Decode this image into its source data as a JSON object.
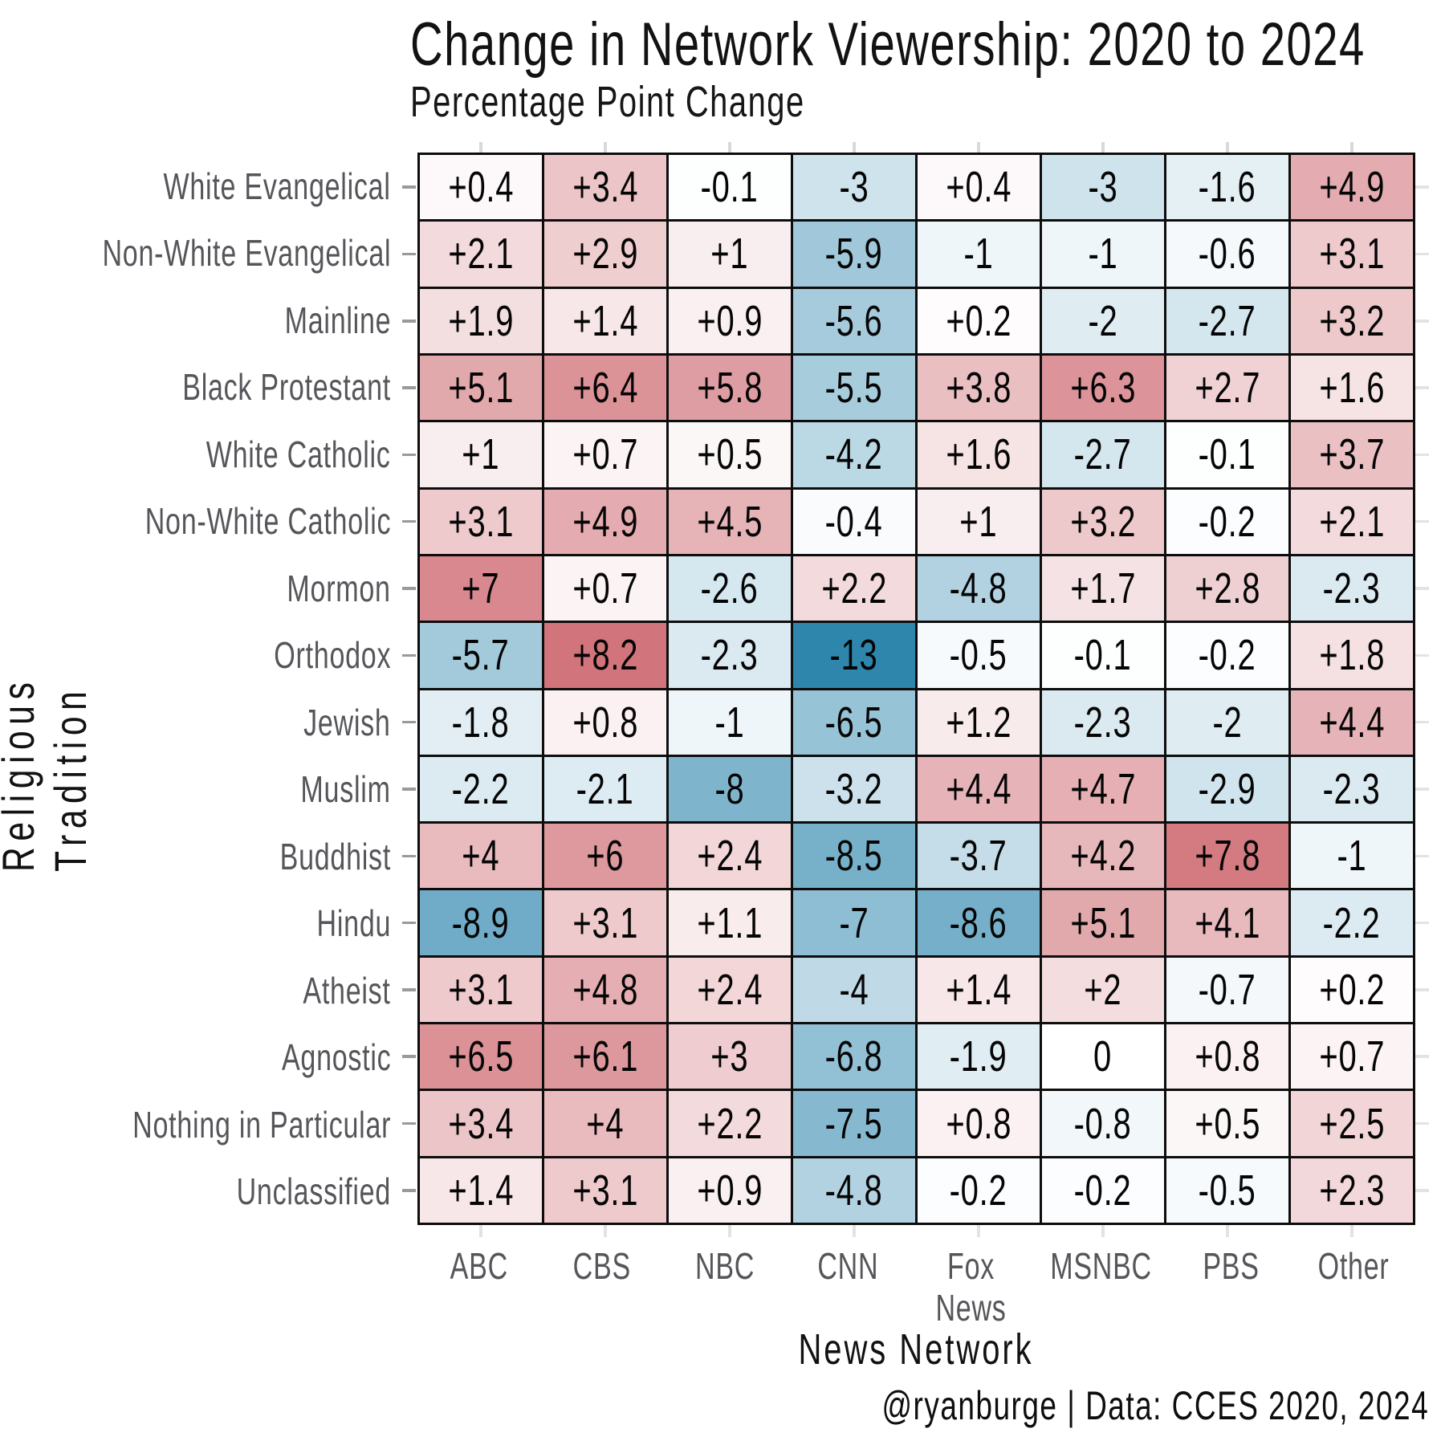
{
  "footer": {
    "credit": "@ryanburge | Data: CCES 2020, 2024"
  },
  "chart_data": {
    "type": "heatmap",
    "title": "Change in Network Viewership: 2020 to 2024",
    "subtitle": "Percentage Point Change",
    "xlabel": "News Network",
    "ylabel": "Religious Tradition",
    "legend": "none",
    "grid": "black cell borders, axis ticks on all four sides",
    "columns": [
      "ABC",
      "CBS",
      "NBC",
      "CNN",
      "Fox News",
      "MSNBC",
      "PBS",
      "Other"
    ],
    "rows": [
      "White Evangelical",
      "Non-White Evangelical",
      "Mainline",
      "Black Protestant",
      "White Catholic",
      "Non-White Catholic",
      "Mormon",
      "Orthodox",
      "Jewish",
      "Muslim",
      "Buddhist",
      "Hindu",
      "Atheist",
      "Agnostic",
      "Nothing in Particular",
      "Unclassified"
    ],
    "values": [
      [
        0.4,
        3.4,
        -0.1,
        -3,
        0.4,
        -3,
        -1.6,
        4.9
      ],
      [
        2.1,
        2.9,
        1,
        -5.9,
        -1,
        -1,
        -0.6,
        3.1
      ],
      [
        1.9,
        1.4,
        0.9,
        -5.6,
        0.2,
        -2,
        -2.7,
        3.2
      ],
      [
        5.1,
        6.4,
        5.8,
        -5.5,
        3.8,
        6.3,
        2.7,
        1.6
      ],
      [
        1,
        0.7,
        0.5,
        -4.2,
        1.6,
        -2.7,
        -0.1,
        3.7
      ],
      [
        3.1,
        4.9,
        4.5,
        -0.4,
        1,
        3.2,
        -0.2,
        2.1
      ],
      [
        7,
        0.7,
        -2.6,
        2.2,
        -4.8,
        1.7,
        2.8,
        -2.3
      ],
      [
        -5.7,
        8.2,
        -2.3,
        -13,
        -0.5,
        -0.1,
        -0.2,
        1.8
      ],
      [
        -1.8,
        0.8,
        -1,
        -6.5,
        1.2,
        -2.3,
        -2,
        4.4
      ],
      [
        -2.2,
        -2.1,
        -8,
        -3.2,
        4.4,
        4.7,
        -2.9,
        -2.3
      ],
      [
        4,
        6,
        2.4,
        -8.5,
        -3.7,
        4.2,
        7.8,
        -1
      ],
      [
        -8.9,
        3.1,
        1.1,
        -7,
        -8.6,
        5.1,
        4.1,
        -2.2
      ],
      [
        3.1,
        4.8,
        2.4,
        -4,
        1.4,
        2,
        -0.7,
        0.2
      ],
      [
        6.5,
        6.1,
        3,
        -6.8,
        -1.9,
        0,
        0.8,
        0.7
      ],
      [
        3.4,
        4,
        2.2,
        -7.5,
        0.8,
        -0.8,
        0.5,
        2.5
      ],
      [
        1.4,
        3.1,
        0.9,
        -4.8,
        -0.2,
        -0.2,
        -0.5,
        2.3
      ]
    ],
    "cell_label_format": "signed (+ prefix for positive values)",
    "colorscale": {
      "zero_color": "#ffffff",
      "positive_max_color": "#d1747b",
      "negative_max_color": "#2e86ad",
      "value_at_positive_max": 8.2,
      "value_at_negative_max": -13
    },
    "text_colors": {
      "cell_value": "#050505",
      "axis_tick_labels": "#55565a",
      "titles": "#121212"
    }
  }
}
